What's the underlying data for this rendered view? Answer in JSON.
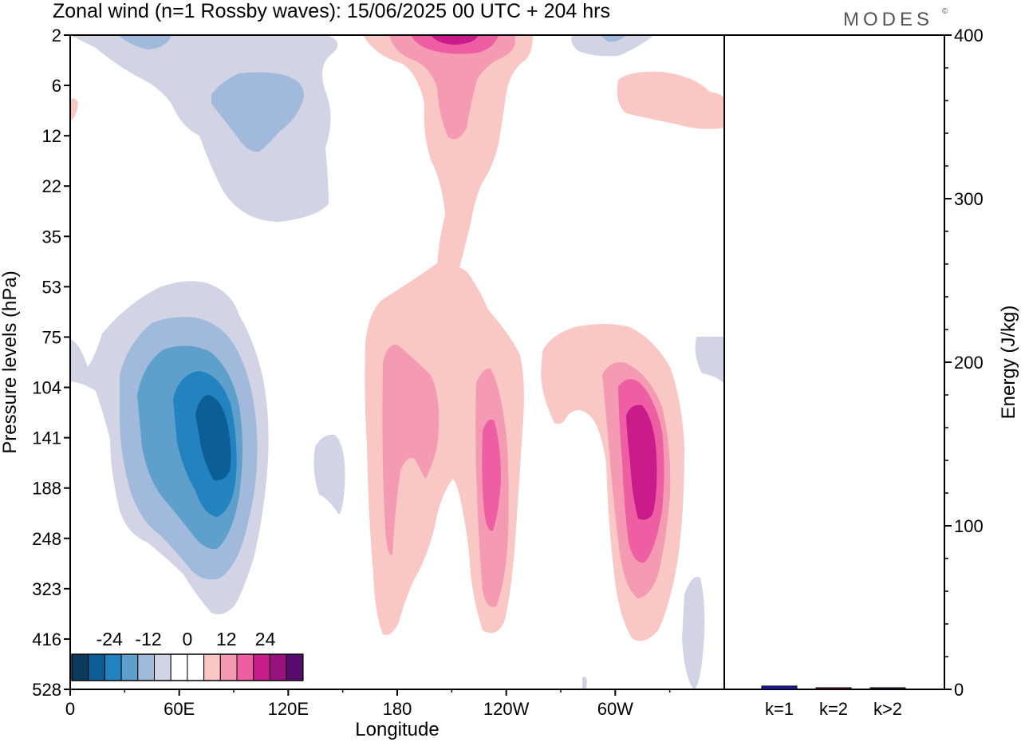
{
  "header": {
    "title": "Zonal wind (n=1 Rossby waves):  15/06/2025  00 UTC  + 204 hrs",
    "brand": "MODES",
    "brand_mark": "©"
  },
  "chart_data": [
    {
      "type": "heatmap",
      "title": "Zonal wind (n=1 Rossby waves):  15/06/2025  00 UTC  + 204 hrs",
      "xlabel": "Longitude",
      "ylabel": "Pressure levels (hPa)",
      "x_ticks": [
        "0",
        "60E",
        "120E",
        "180",
        "120W",
        "60W"
      ],
      "x_tick_values": [
        0,
        60,
        120,
        180,
        240,
        300
      ],
      "xlim": [
        0,
        360
      ],
      "y_ticks": [
        "2",
        "6",
        "12",
        "22",
        "35",
        "53",
        "75",
        "104",
        "141",
        "188",
        "248",
        "323",
        "416",
        "528"
      ],
      "y_scale": "categorical pressure levels, top to bottom",
      "grid": false,
      "colorbar": {
        "tick_labels": [
          "-24",
          "-12",
          "0",
          "12",
          "24"
        ],
        "tick_values": [
          -24,
          -12,
          0,
          12,
          24
        ],
        "levels": [
          -30,
          -25,
          -20,
          -15,
          -10,
          -5,
          -1,
          1,
          5,
          10,
          15,
          20,
          25,
          30
        ],
        "colors": [
          "#0b3a5c",
          "#0b5f96",
          "#2283c0",
          "#5e9fcb",
          "#a1b9da",
          "#d2d4e6",
          "#ffffff",
          "#ffffff",
          "#f9c8c4",
          "#f59ab3",
          "#ed5fa2",
          "#c91b8a",
          "#99117f",
          "#560b6e"
        ],
        "placement": "bottom-left inset"
      },
      "features": [
        {
          "name": "negative core",
          "lon": 77,
          "level": "141",
          "peak": -18
        },
        {
          "name": "negative upper",
          "lon": 36,
          "level": "8",
          "peak": -6
        },
        {
          "name": "positive stratospheric",
          "lon": 207,
          "level": "2",
          "peak": 20
        },
        {
          "name": "positive core",
          "lon": 236,
          "level": "165",
          "peak": 14
        },
        {
          "name": "positive core",
          "lon": 321,
          "level": "150",
          "peak": 20
        },
        {
          "name": "positive broad",
          "lon": 190,
          "level": "120",
          "peak": 8
        }
      ]
    },
    {
      "type": "bar",
      "categories": [
        "k=1",
        "k=2",
        "k>2"
      ],
      "values": [
        2,
        0.5,
        0.5
      ],
      "ylabel": "Energy (J/kg)",
      "ylim": [
        0,
        400
      ],
      "y_ticks": [
        "0",
        "100",
        "200",
        "300",
        "400"
      ],
      "colors": [
        "#1a1aa8",
        "#5a1a2a",
        "#1a1a3a"
      ],
      "grid": false
    }
  ]
}
